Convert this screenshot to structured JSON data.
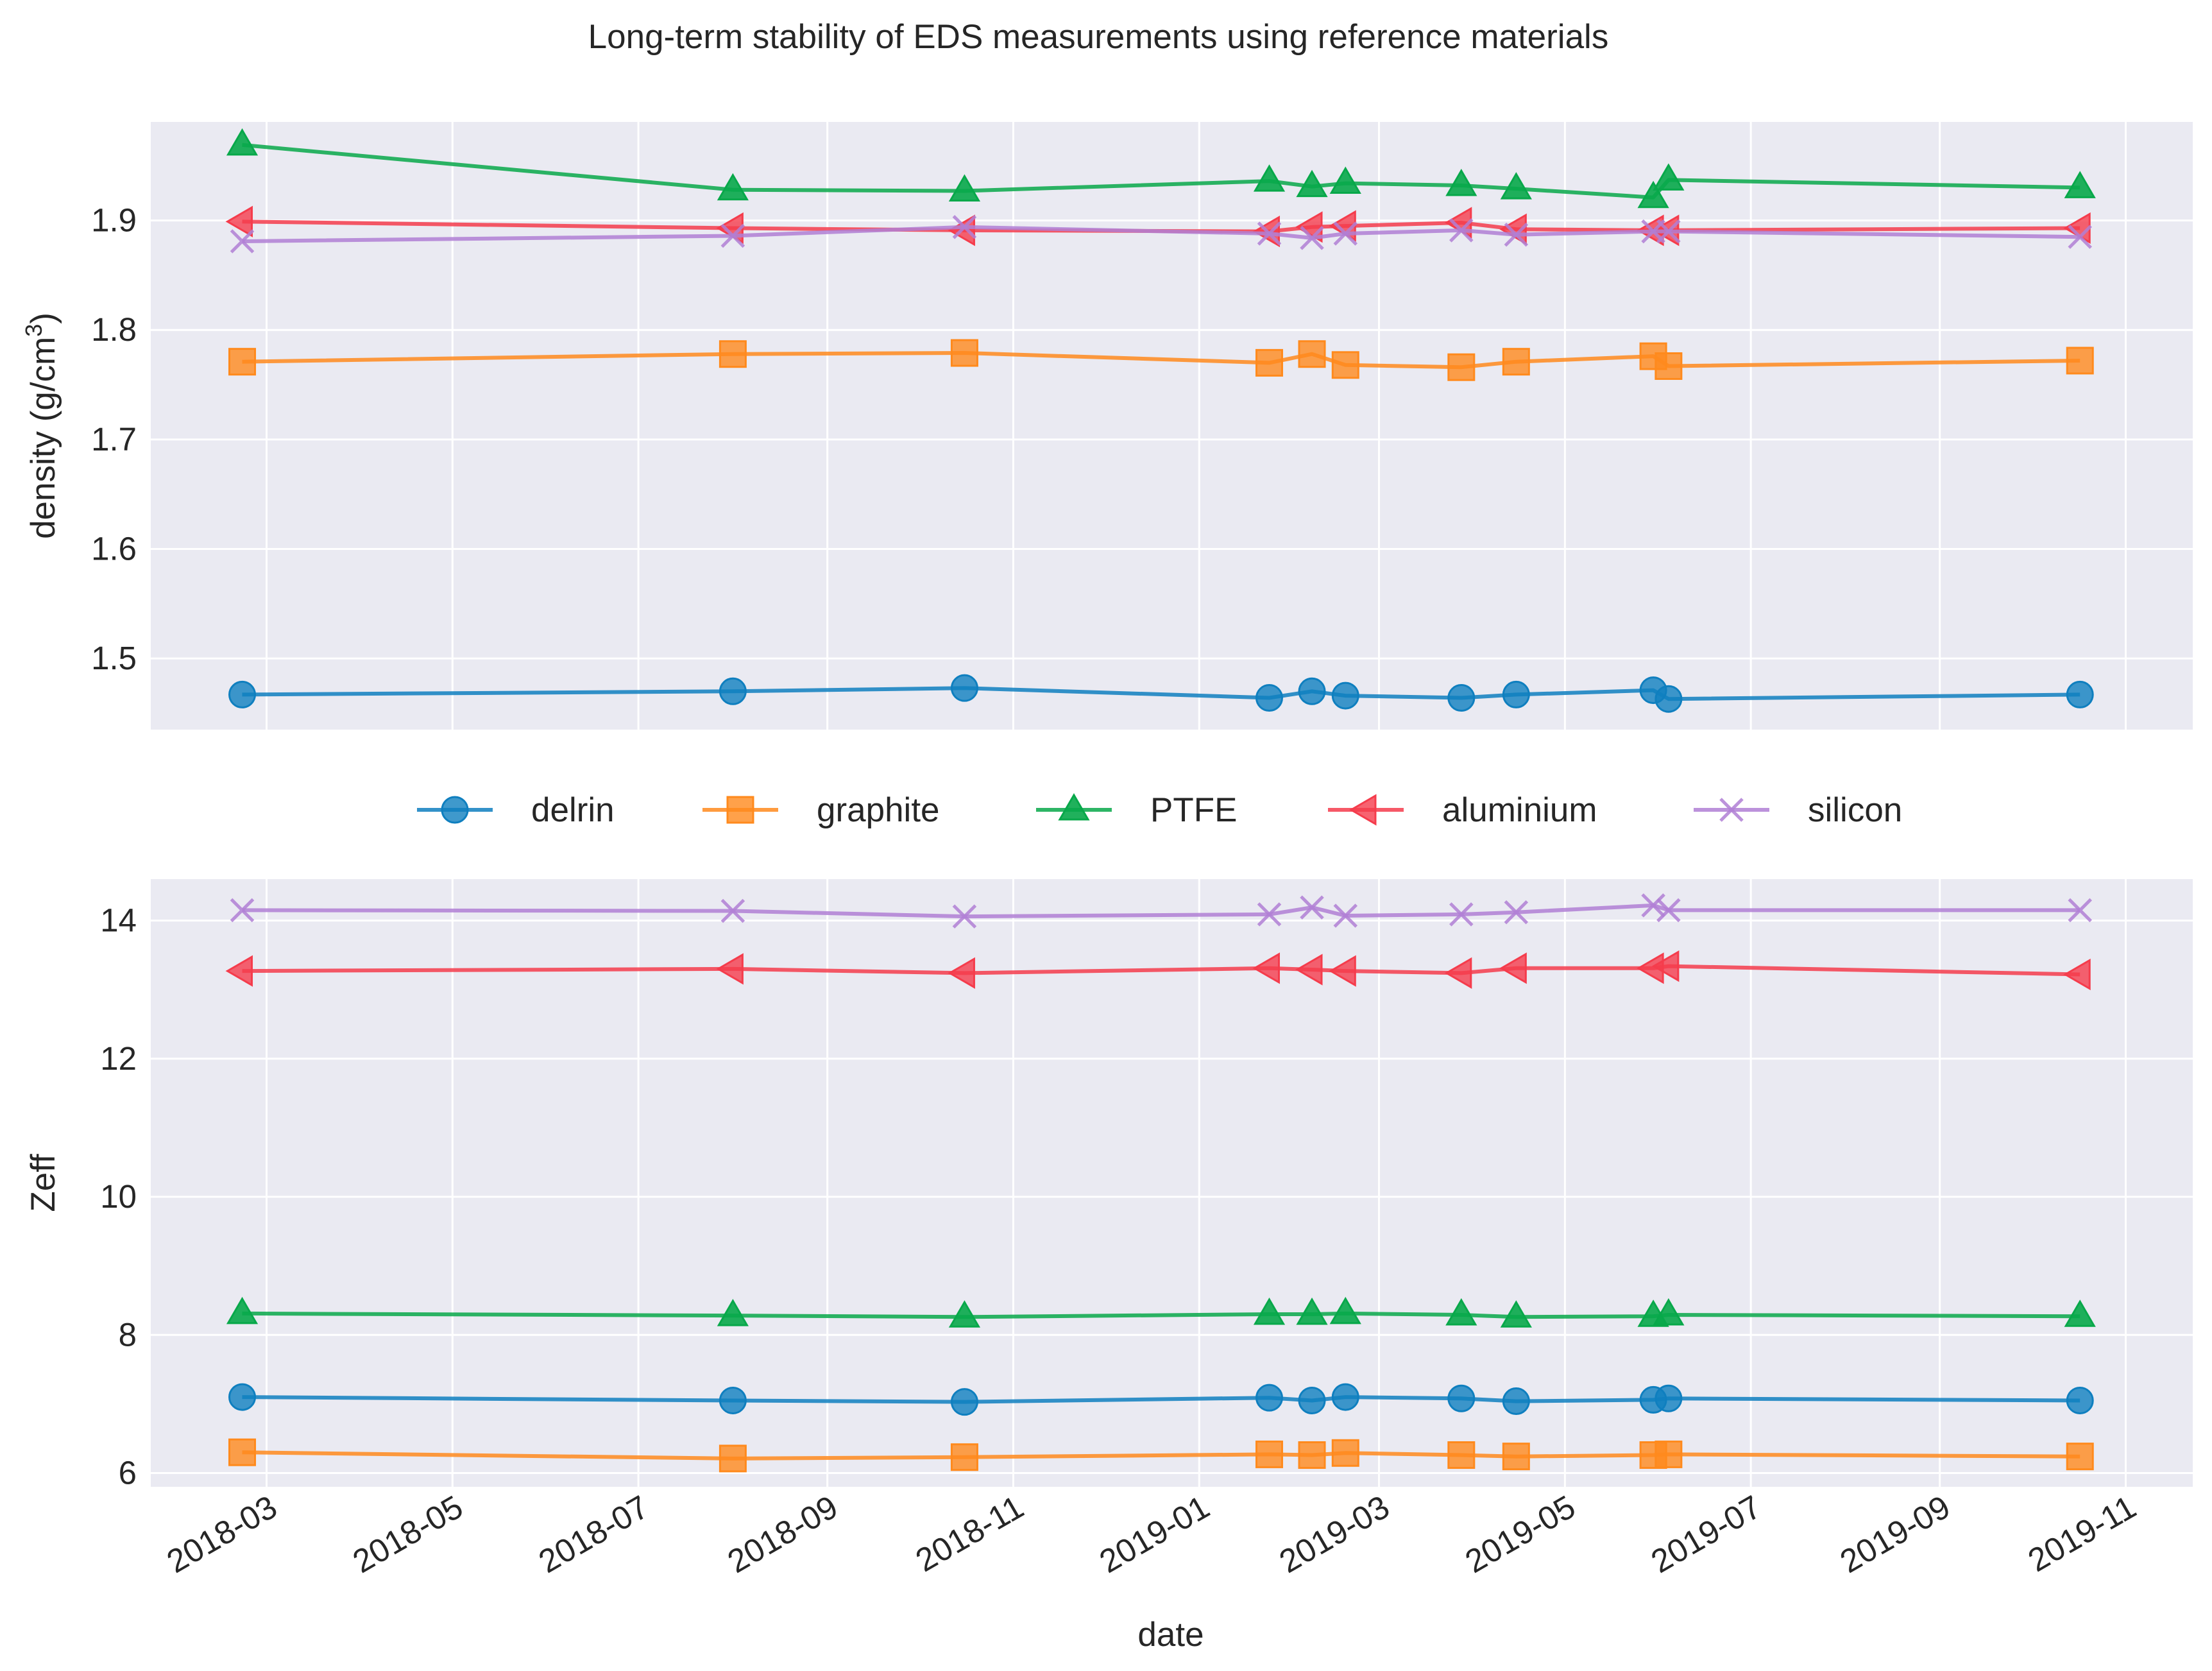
{
  "colors": {
    "delrin": "#0f7fbf",
    "graphite": "#ff8a1d",
    "PTFE": "#08a84a",
    "aluminium": "#f53c4c",
    "silicon": "#b07fd5",
    "axes_bg": "#eaeaf2",
    "grid": "#ffffff"
  },
  "chart_data": {
    "type": "line",
    "title": "Long-term stability of EDS measurements using reference materials",
    "xlabel": "date",
    "dates": [
      "2018-02-21",
      "2018-08-01",
      "2018-10-16",
      "2019-01-24",
      "2019-02-07",
      "2019-02-18",
      "2019-03-28",
      "2019-04-15",
      "2019-05-30",
      "2019-06-04",
      "2019-10-17"
    ],
    "x_ticks": [
      "2018-03",
      "2018-05",
      "2018-07",
      "2018-09",
      "2018-11",
      "2019-01",
      "2019-03",
      "2019-05",
      "2019-07",
      "2019-09",
      "2019-11"
    ],
    "legend": [
      "delrin",
      "graphite",
      "PTFE",
      "aluminium",
      "silicon"
    ],
    "panels": [
      {
        "ylabel": "density (g/cm³)",
        "ylim": [
          1.435,
          1.99
        ],
        "y_ticks": [
          "1.5",
          "1.6",
          "1.7",
          "1.8",
          "1.9"
        ],
        "series": [
          {
            "name": "delrin",
            "marker": "circle",
            "values": [
              1.467,
              1.47,
              1.473,
              1.464,
              1.47,
              1.466,
              1.464,
              1.467,
              1.471,
              1.463,
              1.467
            ]
          },
          {
            "name": "graphite",
            "marker": "square",
            "values": [
              1.771,
              1.778,
              1.779,
              1.77,
              1.778,
              1.768,
              1.766,
              1.771,
              1.776,
              1.767,
              1.772
            ]
          },
          {
            "name": "PTFE",
            "marker": "triangle-up",
            "values": [
              1.969,
              1.928,
              1.927,
              1.936,
              1.931,
              1.934,
              1.932,
              1.929,
              1.921,
              1.937,
              1.93
            ]
          },
          {
            "name": "aluminium",
            "marker": "triangle-left",
            "values": [
              1.899,
              1.893,
              1.891,
              1.89,
              1.894,
              1.895,
              1.898,
              1.892,
              1.891,
              1.891,
              1.893
            ]
          },
          {
            "name": "silicon",
            "marker": "x",
            "values": [
              1.881,
              1.886,
              1.894,
              1.888,
              1.884,
              1.888,
              1.891,
              1.887,
              1.89,
              1.89,
              1.885
            ]
          }
        ]
      },
      {
        "ylabel": "Zeff",
        "ylim": [
          5.8,
          14.6
        ],
        "y_ticks": [
          "6",
          "8",
          "10",
          "12",
          "14"
        ],
        "series": [
          {
            "name": "delrin",
            "marker": "circle",
            "values": [
              7.1,
              7.05,
              7.03,
              7.09,
              7.05,
              7.1,
              7.08,
              7.04,
              7.06,
              7.08,
              7.05
            ]
          },
          {
            "name": "graphite",
            "marker": "square",
            "values": [
              6.3,
              6.21,
              6.23,
              6.27,
              6.26,
              6.29,
              6.26,
              6.24,
              6.26,
              6.27,
              6.24
            ]
          },
          {
            "name": "PTFE",
            "marker": "triangle-up",
            "values": [
              8.31,
              8.28,
              8.26,
              8.3,
              8.3,
              8.31,
              8.29,
              8.26,
              8.27,
              8.29,
              8.27
            ]
          },
          {
            "name": "aluminium",
            "marker": "triangle-left",
            "values": [
              13.27,
              13.3,
              13.24,
              13.31,
              13.29,
              13.27,
              13.24,
              13.31,
              13.31,
              13.34,
              13.22
            ]
          },
          {
            "name": "silicon",
            "marker": "x",
            "values": [
              14.15,
              14.14,
              14.06,
              14.09,
              14.19,
              14.07,
              14.09,
              14.12,
              14.22,
              14.15,
              14.15
            ]
          }
        ]
      }
    ]
  }
}
